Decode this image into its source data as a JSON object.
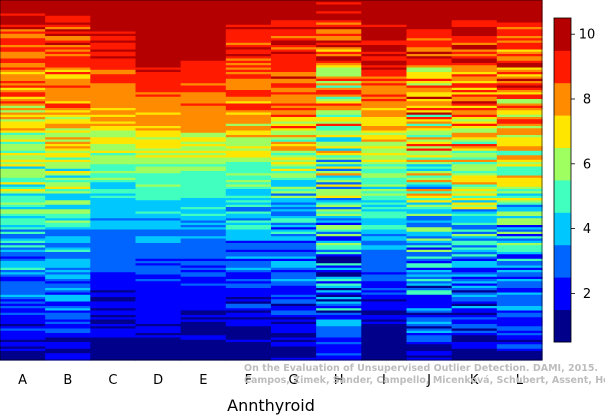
{
  "chart_data": {
    "type": "heatmap",
    "title": "",
    "xlabel": "Annthyroid",
    "ylabel": "",
    "categories": [
      "A",
      "B",
      "C",
      "D",
      "E",
      "F",
      "G",
      "H",
      "I",
      "J",
      "K",
      "L"
    ],
    "rows_shown": "values ranked from highest (top) to lowest (bottom) within each column",
    "color_scale": {
      "min": 0.5,
      "max": 10.5,
      "ticks": [
        2,
        4,
        6,
        8,
        10
      ],
      "colors": [
        "#00008b",
        "#0000ff",
        "#0064ff",
        "#00c8ff",
        "#40ffbf",
        "#a0ff60",
        "#ffe600",
        "#ff8c00",
        "#ff1a00",
        "#b40000"
      ]
    },
    "column_profiles": [
      {
        "category": "A",
        "anchors": [
          [
            0,
            10.4
          ],
          [
            0.08,
            9.0
          ],
          [
            0.25,
            8.0
          ],
          [
            0.45,
            6.0
          ],
          [
            0.65,
            4.0
          ],
          [
            0.85,
            2.5
          ],
          [
            1,
            1.3
          ]
        ],
        "noise": 1.6
      },
      {
        "category": "B",
        "anchors": [
          [
            0,
            10.4
          ],
          [
            0.08,
            9.0
          ],
          [
            0.25,
            8.0
          ],
          [
            0.45,
            6.0
          ],
          [
            0.65,
            4.2
          ],
          [
            0.85,
            2.8
          ],
          [
            1,
            1.5
          ]
        ],
        "noise": 1.6
      },
      {
        "category": "C",
        "anchors": [
          [
            0,
            10.4
          ],
          [
            0.1,
            9.5
          ],
          [
            0.3,
            8.0
          ],
          [
            0.5,
            5.0
          ],
          [
            0.62,
            3.5
          ],
          [
            0.8,
            2.0
          ],
          [
            1,
            1.0
          ]
        ],
        "noise": 0.8
      },
      {
        "category": "D",
        "anchors": [
          [
            0,
            10.5
          ],
          [
            0.15,
            10.0
          ],
          [
            0.3,
            8.0
          ],
          [
            0.45,
            6.0
          ],
          [
            0.6,
            4.0
          ],
          [
            0.75,
            2.5
          ],
          [
            1,
            1.0
          ]
        ],
        "noise": 0.6
      },
      {
        "category": "E",
        "anchors": [
          [
            0,
            10.5
          ],
          [
            0.15,
            9.5
          ],
          [
            0.3,
            8.0
          ],
          [
            0.45,
            6.0
          ],
          [
            0.6,
            4.0
          ],
          [
            0.75,
            2.5
          ],
          [
            1,
            1.0
          ]
        ],
        "noise": 0.6
      },
      {
        "category": "F",
        "anchors": [
          [
            0,
            10.4
          ],
          [
            0.12,
            9.0
          ],
          [
            0.3,
            8.0
          ],
          [
            0.45,
            6.0
          ],
          [
            0.6,
            4.0
          ],
          [
            0.8,
            2.2
          ],
          [
            1,
            1.0
          ]
        ],
        "noise": 1.2
      },
      {
        "category": "G",
        "anchors": [
          [
            0,
            10.4
          ],
          [
            0.12,
            9.0
          ],
          [
            0.3,
            8.0
          ],
          [
            0.45,
            6.0
          ],
          [
            0.6,
            4.0
          ],
          [
            0.8,
            2.5
          ],
          [
            1,
            1.2
          ]
        ],
        "noise": 1.6
      },
      {
        "category": "H",
        "anchors": [
          [
            0,
            10.4
          ],
          [
            0.1,
            9.0
          ],
          [
            0.3,
            7.0
          ],
          [
            0.5,
            5.0
          ],
          [
            0.7,
            3.5
          ],
          [
            0.9,
            3.0
          ],
          [
            1,
            2.5
          ]
        ],
        "noise": 2.8
      },
      {
        "category": "I",
        "anchors": [
          [
            0,
            10.4
          ],
          [
            0.12,
            9.5
          ],
          [
            0.3,
            8.0
          ],
          [
            0.45,
            6.0
          ],
          [
            0.62,
            4.0
          ],
          [
            0.8,
            2.0
          ],
          [
            1,
            1.0
          ]
        ],
        "noise": 1.0
      },
      {
        "category": "J",
        "anchors": [
          [
            0,
            10.4
          ],
          [
            0.15,
            8.5
          ],
          [
            0.3,
            7.5
          ],
          [
            0.5,
            6.0
          ],
          [
            0.7,
            4.0
          ],
          [
            0.85,
            3.0
          ],
          [
            1,
            1.5
          ]
        ],
        "noise": 2.6
      },
      {
        "category": "K",
        "anchors": [
          [
            0,
            10.4
          ],
          [
            0.1,
            9.0
          ],
          [
            0.3,
            8.0
          ],
          [
            0.5,
            6.0
          ],
          [
            0.65,
            4.0
          ],
          [
            0.85,
            2.5
          ],
          [
            1,
            1.2
          ]
        ],
        "noise": 2.0
      },
      {
        "category": "L",
        "anchors": [
          [
            0,
            10.4
          ],
          [
            0.1,
            9.0
          ],
          [
            0.3,
            7.5
          ],
          [
            0.5,
            6.0
          ],
          [
            0.65,
            4.0
          ],
          [
            0.85,
            3.0
          ],
          [
            1,
            1.5
          ]
        ],
        "noise": 2.2
      }
    ],
    "legend_placement": "right",
    "grid": false
  },
  "watermark": {
    "line1": "On the Evaluation of Unsupervised Outlier Detection. DAMI, 2015.",
    "line2": "Campos, Zimek, Sander, Campello, Micenková, Schubert, Assent, Houle"
  }
}
